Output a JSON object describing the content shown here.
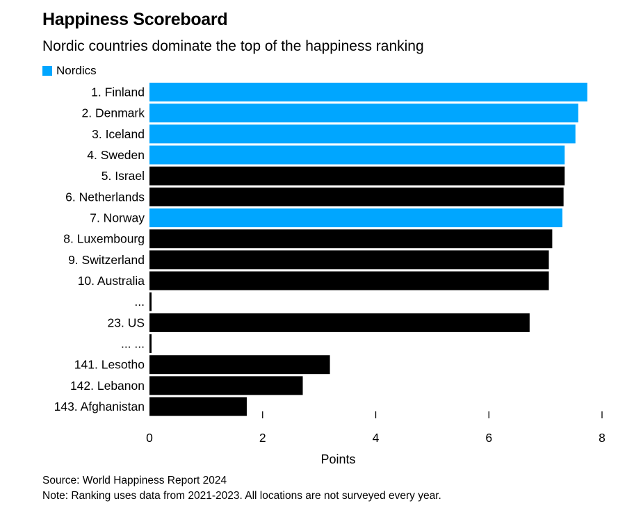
{
  "title": "Happiness Scoreboard",
  "subtitle": "Nordic countries dominate the top of the happiness ranking",
  "legend": {
    "label": "Nordics",
    "color": "#00A6FF"
  },
  "colors": {
    "nordic": "#00A6FF",
    "other": "#000000"
  },
  "footer": {
    "source": "Source: World Happiness Report 2024",
    "note": "Note: Ranking uses data from 2021-2023. All locations are not surveyed every year."
  },
  "chart_data": {
    "type": "bar",
    "orientation": "horizontal",
    "categories": [
      "1. Finland",
      "2. Denmark",
      "3. Iceland",
      "4. Sweden",
      "5. Israel",
      "6. Netherlands",
      "7. Norway",
      "8. Luxembourg",
      "9. Switzerland",
      "10. Australia",
      "...",
      "23. US",
      "... ...",
      "141. Lesotho",
      "142. Lebanon",
      "143. Afghanistan"
    ],
    "values": [
      7.74,
      7.58,
      7.53,
      7.34,
      7.34,
      7.32,
      7.3,
      7.12,
      7.06,
      7.06,
      0,
      6.72,
      0,
      3.19,
      2.71,
      1.72
    ],
    "nordic": [
      true,
      true,
      true,
      true,
      false,
      false,
      true,
      false,
      false,
      false,
      false,
      false,
      false,
      false,
      false,
      false
    ],
    "xlabel": "Points",
    "ylabel": "",
    "xlim": [
      0,
      8
    ],
    "xticks": [
      0,
      2,
      4,
      6,
      8
    ],
    "grid": false,
    "legend_position": "top-left"
  }
}
